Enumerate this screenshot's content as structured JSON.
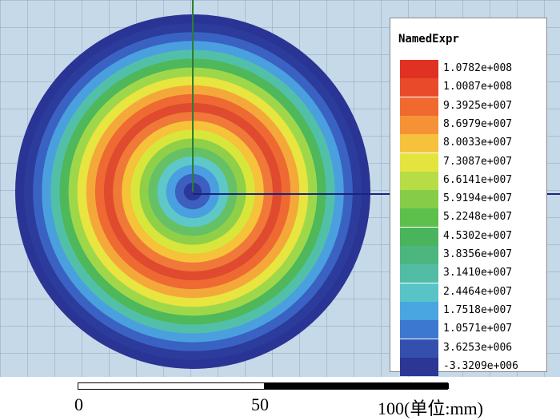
{
  "field_plot": {
    "background_color": "#c6d9e8",
    "center_color": "#2b3a9a",
    "ring_colors": [
      "#2b3a9a",
      "#3c5fc0",
      "#4a9fe0",
      "#5ec8c8",
      "#66c066",
      "#8fd048",
      "#d8e63c",
      "#f5c23a",
      "#f07838",
      "#e04a2e",
      "#ee6a32",
      "#f5a83a",
      "#e8e440",
      "#9ed84a",
      "#4eb85a",
      "#52c0a8",
      "#4aa0de",
      "#3a62c2",
      "#2c3c9c",
      "#2a3494"
    ]
  },
  "legend": {
    "title": "NamedExpr",
    "entries": [
      {
        "label": "1.0782e+008",
        "color": "#e03222"
      },
      {
        "label": "1.0087e+008",
        "color": "#e84a2a"
      },
      {
        "label": "9.3925e+007",
        "color": "#f06a30"
      },
      {
        "label": "8.6979e+007",
        "color": "#f59236"
      },
      {
        "label": "8.0033e+007",
        "color": "#f6c23c"
      },
      {
        "label": "7.3087e+007",
        "color": "#e4e43e"
      },
      {
        "label": "6.6141e+007",
        "color": "#b6dc46"
      },
      {
        "label": "5.9194e+007",
        "color": "#86cc48"
      },
      {
        "label": "5.2248e+007",
        "color": "#5ec04c"
      },
      {
        "label": "4.5302e+007",
        "color": "#4ab45c"
      },
      {
        "label": "3.8356e+007",
        "color": "#4cb67e"
      },
      {
        "label": "3.1410e+007",
        "color": "#52bca4"
      },
      {
        "label": "2.4464e+007",
        "color": "#58c4c8"
      },
      {
        "label": "1.7518e+007",
        "color": "#4aa6e0"
      },
      {
        "label": "1.0571e+007",
        "color": "#3c78d0"
      },
      {
        "label": "3.6253e+006",
        "color": "#3450ae"
      },
      {
        "label": "-3.3209e+006",
        "color": "#2c3694"
      }
    ]
  },
  "axes": {
    "vertical_color": "#2e7d32",
    "horizontal_color": "#1a237e"
  },
  "scale_bar": {
    "tick_0": "0",
    "tick_50": "50",
    "tick_100": "100(单位:mm)"
  }
}
